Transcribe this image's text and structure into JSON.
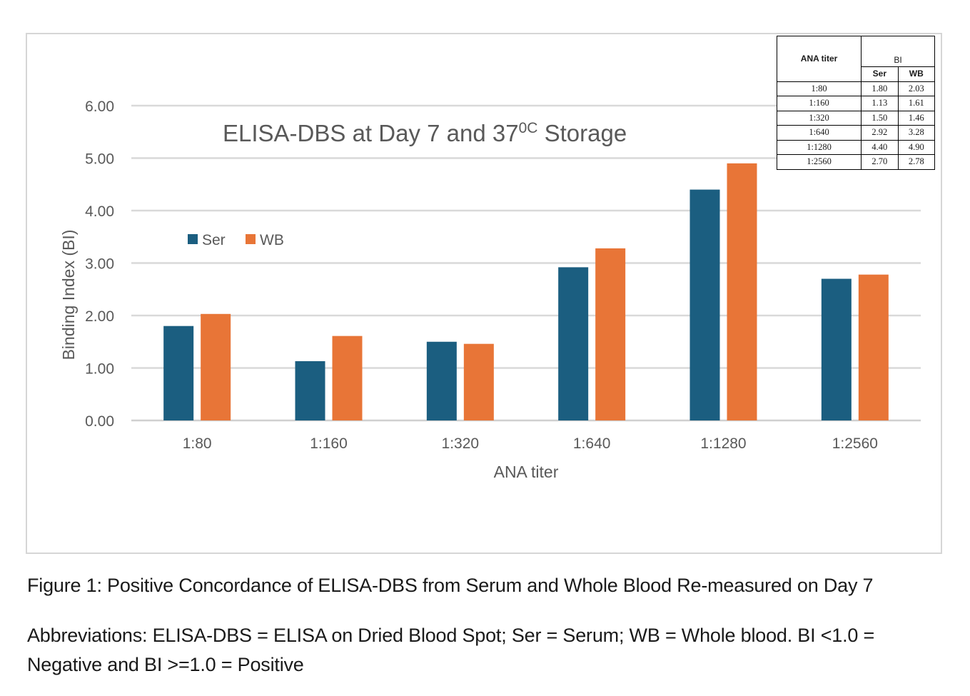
{
  "chart_data": {
    "type": "bar",
    "title": "ELISA-DBS at Day 7 and 37",
    "title_superscript": "0C",
    "title_suffix": " Storage",
    "xlabel": "ANA titer",
    "ylabel": "Binding Index (BI)",
    "ylim": [
      0,
      6
    ],
    "yticks": [
      "0.00",
      "1.00",
      "2.00",
      "3.00",
      "4.00",
      "5.00",
      "6.00"
    ],
    "grid": true,
    "legend_position": "top-left",
    "categories": [
      "1:80",
      "1:160",
      "1:320",
      "1:640",
      "1:1280",
      "1:2560"
    ],
    "series": [
      {
        "name": "Ser",
        "color": "#1b5e80",
        "values": [
          1.8,
          1.13,
          1.5,
          2.92,
          4.4,
          2.7
        ]
      },
      {
        "name": "WB",
        "color": "#e87537",
        "values": [
          2.03,
          1.61,
          1.46,
          3.28,
          4.9,
          2.78
        ]
      }
    ]
  },
  "table": {
    "col1_header": "ANA titer",
    "group_header": "BI",
    "sub_headers": [
      "Ser",
      "WB"
    ],
    "rows": [
      [
        "1:80",
        "1.80",
        "2.03"
      ],
      [
        "1:160",
        "1.13",
        "1.61"
      ],
      [
        "1:320",
        "1.50",
        "1.46"
      ],
      [
        "1:640",
        "2.92",
        "3.28"
      ],
      [
        "1:1280",
        "4.40",
        "4.90"
      ],
      [
        "1:2560",
        "2.70",
        "2.78"
      ]
    ]
  },
  "caption": "Figure 1: Positive Concordance of ELISA-DBS from Serum and Whole Blood Re-measured on Day 7",
  "abbreviations": "Abbreviations: ELISA-DBS = ELISA on Dried Blood Spot; Ser = Serum; WB = Whole blood. BI <1.0 = Negative  and BI >=1.0 = Positive"
}
